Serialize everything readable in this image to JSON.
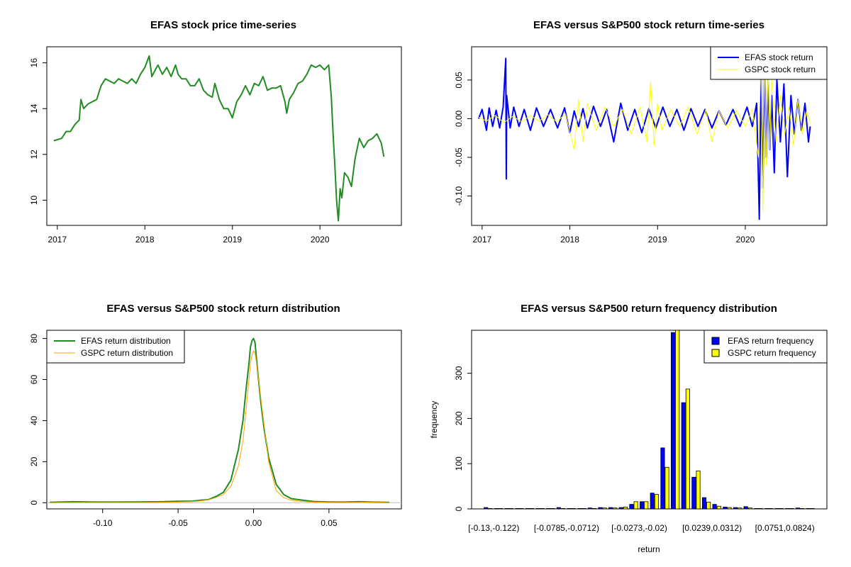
{
  "colors": {
    "efas_price": "#228B22",
    "efas_return": "#0000FF",
    "gspc_return": "#FFFF00",
    "efas_density": "#228B22",
    "gspc_density": "#FFA500",
    "efas_bar": "#0000FF",
    "gspc_bar": "#FFFF00"
  },
  "chart_data": [
    {
      "type": "line",
      "title": "EFAS stock price time-series",
      "xlabel": "",
      "ylabel": "",
      "x_ticks": [
        "2017",
        "2018",
        "2019",
        "2020"
      ],
      "x_tick_values": [
        2017.0,
        2018.0,
        2019.0,
        2020.0
      ],
      "y_ticks": [
        "10",
        "12",
        "14",
        "16"
      ],
      "y_tick_values": [
        10,
        12,
        14,
        16
      ],
      "xlim": [
        2016.88,
        2020.93
      ],
      "ylim": [
        8.9,
        16.7
      ],
      "series": [
        {
          "color": "#228B22",
          "x": [
            2016.96,
            2017.05,
            2017.1,
            2017.15,
            2017.2,
            2017.25,
            2017.27,
            2017.3,
            2017.35,
            2017.4,
            2017.45,
            2017.5,
            2017.55,
            2017.6,
            2017.65,
            2017.7,
            2017.75,
            2017.8,
            2017.85,
            2017.9,
            2017.95,
            2018.0,
            2018.05,
            2018.08,
            2018.12,
            2018.15,
            2018.2,
            2018.25,
            2018.3,
            2018.35,
            2018.38,
            2018.42,
            2018.47,
            2018.52,
            2018.57,
            2018.62,
            2018.67,
            2018.72,
            2018.77,
            2018.8,
            2018.85,
            2018.9,
            2018.95,
            2019.0,
            2019.05,
            2019.1,
            2019.15,
            2019.2,
            2019.25,
            2019.3,
            2019.35,
            2019.4,
            2019.45,
            2019.5,
            2019.55,
            2019.6,
            2019.62,
            2019.65,
            2019.7,
            2019.75,
            2019.8,
            2019.85,
            2019.9,
            2019.95,
            2020.0,
            2020.05,
            2020.1,
            2020.13,
            2020.15,
            2020.17,
            2020.19,
            2020.21,
            2020.23,
            2020.25,
            2020.28,
            2020.32,
            2020.36,
            2020.4,
            2020.45,
            2020.5,
            2020.55,
            2020.6,
            2020.65,
            2020.7,
            2020.73
          ],
          "y": [
            12.6,
            12.7,
            13.0,
            13.0,
            13.3,
            13.5,
            14.4,
            14.0,
            14.2,
            14.3,
            14.4,
            15.0,
            15.3,
            15.2,
            15.1,
            15.3,
            15.2,
            15.1,
            15.3,
            15.1,
            15.5,
            15.8,
            16.3,
            15.4,
            15.7,
            15.9,
            15.5,
            15.8,
            15.4,
            15.9,
            15.5,
            15.3,
            15.3,
            15.0,
            15.0,
            15.3,
            14.8,
            14.6,
            14.5,
            15.1,
            14.4,
            14.0,
            14.0,
            13.6,
            14.3,
            14.6,
            15.0,
            14.6,
            15.1,
            15.0,
            15.4,
            14.8,
            14.9,
            14.9,
            15.0,
            14.3,
            13.8,
            14.4,
            14.7,
            15.1,
            15.2,
            15.5,
            15.9,
            15.8,
            15.9,
            15.7,
            15.9,
            14.5,
            12.9,
            11.5,
            10.0,
            9.1,
            10.5,
            10.1,
            11.2,
            11.0,
            10.6,
            11.8,
            12.7,
            12.3,
            12.6,
            12.7,
            12.9,
            12.5,
            11.9
          ]
        }
      ]
    },
    {
      "type": "line",
      "title": "EFAS versus S&P500 stock return time-series",
      "xlabel": "",
      "ylabel": "",
      "x_ticks": [
        "2017",
        "2018",
        "2019",
        "2020"
      ],
      "x_tick_values": [
        2017.0,
        2018.0,
        2019.0,
        2020.0
      ],
      "y_ticks": [
        "-0.10",
        "-0.05",
        "0.00",
        "0.05"
      ],
      "y_tick_values": [
        -0.1,
        -0.05,
        0.0,
        0.05
      ],
      "xlim": [
        2016.88,
        2020.93
      ],
      "ylim": [
        -0.138,
        0.093
      ],
      "legend": {
        "position": "top-right",
        "entries": [
          "EFAS stock return",
          "GSPC stock return"
        ]
      },
      "series": [
        {
          "name": "EFAS stock return",
          "color": "#0000FF",
          "x": [
            2016.96,
            2017.0,
            2017.05,
            2017.08,
            2017.12,
            2017.16,
            2017.2,
            2017.24,
            2017.27,
            2017.275,
            2017.28,
            2017.32,
            2017.36,
            2017.42,
            2017.48,
            2017.55,
            2017.62,
            2017.7,
            2017.78,
            2017.86,
            2017.94,
            2018.0,
            2018.05,
            2018.1,
            2018.15,
            2018.2,
            2018.27,
            2018.35,
            2018.42,
            2018.5,
            2018.58,
            2018.66,
            2018.74,
            2018.82,
            2018.9,
            2018.98,
            2019.06,
            2019.14,
            2019.22,
            2019.3,
            2019.38,
            2019.46,
            2019.54,
            2019.62,
            2019.7,
            2019.78,
            2019.86,
            2019.94,
            2020.02,
            2020.08,
            2020.13,
            2020.16,
            2020.18,
            2020.2,
            2020.22,
            2020.24,
            2020.26,
            2020.28,
            2020.3,
            2020.33,
            2020.36,
            2020.4,
            2020.44,
            2020.48,
            2020.52,
            2020.56,
            2020.6,
            2020.64,
            2020.68,
            2020.72,
            2020.74
          ],
          "y": [
            0.0,
            0.012,
            -0.015,
            0.014,
            -0.01,
            0.011,
            -0.012,
            0.015,
            0.078,
            -0.078,
            0.03,
            -0.012,
            0.015,
            -0.01,
            0.012,
            -0.015,
            0.014,
            -0.01,
            0.012,
            -0.012,
            0.014,
            -0.018,
            0.01,
            -0.01,
            0.013,
            -0.012,
            0.016,
            -0.01,
            0.012,
            -0.03,
            0.02,
            -0.015,
            0.012,
            -0.018,
            0.013,
            -0.012,
            0.015,
            -0.01,
            0.012,
            -0.015,
            0.013,
            -0.01,
            0.012,
            -0.012,
            0.01,
            -0.008,
            0.012,
            -0.01,
            0.015,
            -0.01,
            0.02,
            -0.13,
            0.06,
            -0.09,
            0.07,
            -0.05,
            0.05,
            -0.04,
            0.03,
            -0.07,
            0.05,
            -0.03,
            0.045,
            -0.075,
            0.03,
            -0.02,
            0.025,
            -0.015,
            0.02,
            -0.03,
            -0.01
          ]
        },
        {
          "name": "GSPC stock return",
          "color": "#FFFF00",
          "x": [
            2016.96,
            2017.05,
            2017.15,
            2017.25,
            2017.35,
            2017.45,
            2017.55,
            2017.65,
            2017.75,
            2017.85,
            2017.95,
            2018.05,
            2018.1,
            2018.15,
            2018.2,
            2018.3,
            2018.4,
            2018.5,
            2018.6,
            2018.7,
            2018.8,
            2018.88,
            2018.92,
            2018.96,
            2019.0,
            2019.05,
            2019.15,
            2019.25,
            2019.35,
            2019.45,
            2019.55,
            2019.62,
            2019.7,
            2019.8,
            2019.9,
            2020.0,
            2020.08,
            2020.15,
            2020.18,
            2020.2,
            2020.22,
            2020.24,
            2020.26,
            2020.28,
            2020.3,
            2020.35,
            2020.4,
            2020.45,
            2020.5,
            2020.55,
            2020.6,
            2020.65,
            2020.7,
            2020.74
          ],
          "y": [
            0.002,
            -0.003,
            0.004,
            -0.005,
            0.003,
            -0.004,
            0.004,
            -0.003,
            0.005,
            -0.004,
            0.006,
            -0.04,
            0.025,
            -0.03,
            0.02,
            -0.015,
            0.015,
            -0.01,
            0.012,
            -0.02,
            0.015,
            -0.03,
            0.048,
            -0.035,
            0.02,
            -0.015,
            0.012,
            -0.01,
            0.015,
            -0.02,
            0.012,
            -0.03,
            0.01,
            -0.012,
            0.01,
            -0.01,
            0.012,
            -0.05,
            0.09,
            -0.12,
            0.09,
            -0.06,
            0.07,
            -0.04,
            0.05,
            -0.03,
            0.03,
            -0.02,
            0.015,
            -0.035,
            0.025,
            -0.02,
            0.01,
            -0.005
          ]
        }
      ]
    },
    {
      "type": "line",
      "title": "EFAS versus S&P500 stock return distribution",
      "xlabel": "",
      "ylabel": "",
      "x_ticks": [
        "-0.10",
        "-0.05",
        "0.00",
        "0.05"
      ],
      "x_tick_values": [
        -0.1,
        -0.05,
        0.0,
        0.05
      ],
      "y_ticks": [
        "0",
        "20",
        "40",
        "60",
        "80"
      ],
      "y_tick_values": [
        0,
        20,
        40,
        60,
        80
      ],
      "xlim": [
        -0.137,
        0.098
      ],
      "ylim": [
        -3.0,
        84.0
      ],
      "legend": {
        "position": "top-left",
        "entries": [
          "EFAS return distribution",
          "GSPC return distribution"
        ]
      },
      "series": [
        {
          "name": "EFAS return distribution",
          "color": "#228B22",
          "x": [
            -0.135,
            -0.12,
            -0.1,
            -0.08,
            -0.06,
            -0.05,
            -0.04,
            -0.035,
            -0.03,
            -0.025,
            -0.02,
            -0.015,
            -0.01,
            -0.007,
            -0.005,
            -0.003,
            -0.002,
            -0.001,
            0.0,
            0.001,
            0.002,
            0.003,
            0.005,
            0.007,
            0.01,
            0.015,
            0.02,
            0.025,
            0.03,
            0.035,
            0.04,
            0.05,
            0.06,
            0.07,
            0.08,
            0.09
          ],
          "y": [
            0.2,
            0.5,
            0.3,
            0.4,
            0.5,
            0.7,
            0.8,
            1.2,
            1.5,
            3.0,
            5.0,
            11.0,
            26.0,
            40.0,
            55.0,
            68.0,
            76.0,
            79.0,
            80.0,
            78.0,
            70.0,
            62.0,
            48.0,
            36.0,
            22.0,
            9.0,
            4.0,
            2.0,
            1.5,
            1.0,
            0.6,
            0.4,
            0.3,
            0.5,
            0.3,
            0.2
          ]
        },
        {
          "name": "GSPC return distribution",
          "color": "#FFA500",
          "x": [
            -0.135,
            -0.12,
            -0.1,
            -0.08,
            -0.06,
            -0.05,
            -0.04,
            -0.035,
            -0.03,
            -0.025,
            -0.02,
            -0.015,
            -0.01,
            -0.007,
            -0.005,
            -0.003,
            -0.002,
            -0.001,
            0.0,
            0.001,
            0.002,
            0.003,
            0.005,
            0.007,
            0.01,
            0.015,
            0.02,
            0.025,
            0.03,
            0.035,
            0.04,
            0.05,
            0.06,
            0.07,
            0.08,
            0.09
          ],
          "y": [
            0.0,
            0.1,
            0.1,
            0.1,
            0.2,
            0.3,
            0.6,
            0.9,
            1.4,
            2.5,
            4.0,
            8.0,
            18.0,
            30.0,
            45.0,
            60.0,
            68.0,
            72.0,
            74.0,
            73.0,
            68.0,
            62.0,
            50.0,
            38.0,
            20.0,
            6.0,
            2.5,
            1.2,
            0.8,
            0.5,
            0.3,
            0.2,
            0.2,
            0.2,
            0.3,
            0.1
          ]
        }
      ]
    },
    {
      "type": "bar",
      "title": "EFAS versus S&P500 return frequency distribution",
      "xlabel": "return",
      "ylabel": "frequency",
      "category_labels_shown": [
        "[-0.13,-0.122)",
        "[-0.0785,-0.0712)",
        "[-0.0273,-0.02)",
        "[0.0239,0.0312)",
        "[0.0751,0.0824)"
      ],
      "y_ticks": [
        "0",
        "100",
        "200",
        "300"
      ],
      "y_tick_values": [
        0,
        100,
        200,
        300
      ],
      "ylim": [
        0,
        395
      ],
      "legend": {
        "position": "top-right",
        "entries": [
          "EFAS return frequency",
          "GSPC return frequency"
        ]
      },
      "series": [
        {
          "name": "EFAS return frequency",
          "color": "#0000FF",
          "values": [
            3,
            1,
            1,
            1,
            1,
            1,
            1,
            3,
            1,
            1,
            2,
            3,
            3,
            3,
            10,
            16,
            35,
            135,
            390,
            235,
            70,
            25,
            10,
            4,
            3,
            5,
            1,
            1,
            1,
            1,
            2,
            1
          ]
        },
        {
          "name": "GSPC return frequency",
          "color": "#FFFF00",
          "values": [
            1,
            1,
            1,
            1,
            1,
            1,
            1,
            1,
            1,
            1,
            1,
            2,
            2,
            4,
            16,
            16,
            32,
            92,
            395,
            265,
            84,
            15,
            6,
            3,
            2,
            2,
            1,
            1,
            1,
            1,
            1,
            1
          ]
        }
      ]
    }
  ]
}
